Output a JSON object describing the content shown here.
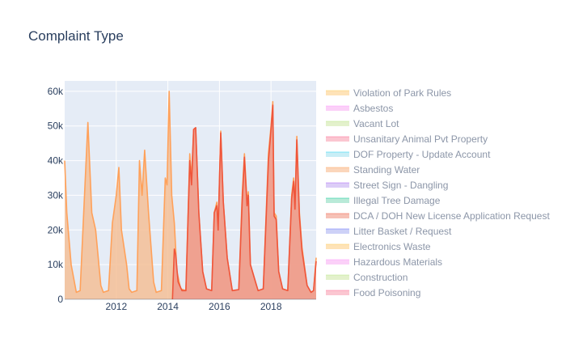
{
  "chart_data": {
    "type": "area",
    "title": "Complaint Type",
    "xlabel": "",
    "ylabel": "",
    "xlim": [
      2010.0,
      2019.75
    ],
    "ylim": [
      0,
      63000
    ],
    "x_ticks": [
      {
        "value": 2012,
        "label": "2012"
      },
      {
        "value": 2014,
        "label": "2014"
      },
      {
        "value": 2016,
        "label": "2016"
      },
      {
        "value": 2018,
        "label": "2018"
      }
    ],
    "y_ticks": [
      {
        "value": 0,
        "label": "0"
      },
      {
        "value": 10000,
        "label": "10k"
      },
      {
        "value": 20000,
        "label": "20k"
      },
      {
        "value": 30000,
        "label": "30k"
      },
      {
        "value": 40000,
        "label": "40k"
      },
      {
        "value": 50000,
        "label": "50k"
      },
      {
        "value": 60000,
        "label": "60k"
      }
    ],
    "grid": true,
    "legend_position": "right",
    "plot_background": "#e5ecf6",
    "series": [
      {
        "name": "Standing Water",
        "color": "#ffa15a",
        "fill": "#f5c096",
        "points": [
          [
            2010.0,
            40000
          ],
          [
            2010.08,
            25000
          ],
          [
            2010.25,
            10000
          ],
          [
            2010.45,
            2000
          ],
          [
            2010.6,
            2500
          ],
          [
            2010.8,
            35000
          ],
          [
            2010.9,
            51000
          ],
          [
            2011.05,
            25000
          ],
          [
            2011.2,
            20000
          ],
          [
            2011.4,
            4000
          ],
          [
            2011.5,
            2000
          ],
          [
            2011.7,
            2500
          ],
          [
            2011.85,
            22000
          ],
          [
            2012.0,
            30000
          ],
          [
            2012.1,
            38000
          ],
          [
            2012.2,
            20000
          ],
          [
            2012.4,
            10000
          ],
          [
            2012.5,
            3000
          ],
          [
            2012.6,
            2000
          ],
          [
            2012.8,
            2500
          ],
          [
            2012.9,
            40000
          ],
          [
            2013.0,
            30000
          ],
          [
            2013.1,
            43000
          ],
          [
            2013.25,
            25000
          ],
          [
            2013.45,
            5000
          ],
          [
            2013.55,
            2000
          ],
          [
            2013.75,
            2500
          ],
          [
            2013.9,
            35000
          ],
          [
            2013.97,
            33000
          ],
          [
            2014.05,
            60000
          ],
          [
            2014.15,
            30000
          ],
          [
            2014.25,
            22000
          ],
          [
            2014.35,
            8000
          ],
          [
            2014.5,
            3000
          ],
          [
            2014.7,
            2500
          ],
          [
            2014.85,
            42000
          ],
          [
            2014.92,
            35000
          ],
          [
            2015.0,
            49000
          ],
          [
            2015.08,
            49500
          ],
          [
            2015.2,
            25000
          ],
          [
            2015.35,
            8000
          ],
          [
            2015.5,
            3000
          ],
          [
            2015.7,
            2500
          ],
          [
            2015.8,
            25000
          ],
          [
            2015.9,
            28000
          ],
          [
            2015.95,
            20000
          ],
          [
            2016.05,
            48500
          ],
          [
            2016.15,
            28000
          ],
          [
            2016.3,
            12000
          ],
          [
            2016.5,
            2500
          ],
          [
            2016.75,
            2800
          ],
          [
            2016.88,
            30000
          ],
          [
            2016.97,
            42000
          ],
          [
            2017.07,
            28000
          ],
          [
            2017.12,
            31000
          ],
          [
            2017.2,
            10000
          ],
          [
            2017.4,
            5000
          ],
          [
            2017.5,
            2500
          ],
          [
            2017.7,
            3000
          ],
          [
            2017.9,
            42000
          ],
          [
            2018.0,
            50000
          ],
          [
            2018.07,
            57000
          ],
          [
            2018.12,
            25000
          ],
          [
            2018.2,
            24000
          ],
          [
            2018.3,
            8000
          ],
          [
            2018.45,
            3000
          ],
          [
            2018.65,
            2500
          ],
          [
            2018.8,
            30000
          ],
          [
            2018.88,
            35000
          ],
          [
            2018.93,
            27000
          ],
          [
            2019.0,
            47000
          ],
          [
            2019.1,
            25000
          ],
          [
            2019.2,
            15000
          ],
          [
            2019.4,
            4000
          ],
          [
            2019.55,
            2000
          ],
          [
            2019.65,
            2500
          ],
          [
            2019.75,
            12000
          ]
        ]
      },
      {
        "name": "DCA / DOH New License Application Request",
        "color": "#ef553b",
        "fill": "#ee9a8c",
        "points": [
          [
            2014.18,
            0
          ],
          [
            2014.25,
            14500
          ],
          [
            2014.3,
            13000
          ],
          [
            2014.4,
            5000
          ],
          [
            2014.55,
            2500
          ],
          [
            2014.7,
            2500
          ],
          [
            2014.85,
            40000
          ],
          [
            2014.92,
            33000
          ],
          [
            2015.0,
            49000
          ],
          [
            2015.08,
            49500
          ],
          [
            2015.2,
            25000
          ],
          [
            2015.35,
            8000
          ],
          [
            2015.5,
            3000
          ],
          [
            2015.7,
            2500
          ],
          [
            2015.8,
            25000
          ],
          [
            2015.9,
            27000
          ],
          [
            2015.95,
            20000
          ],
          [
            2016.05,
            48000
          ],
          [
            2016.15,
            28000
          ],
          [
            2016.3,
            12000
          ],
          [
            2016.5,
            2500
          ],
          [
            2016.75,
            2800
          ],
          [
            2016.88,
            28000
          ],
          [
            2016.97,
            41000
          ],
          [
            2017.07,
            27000
          ],
          [
            2017.12,
            30000
          ],
          [
            2017.2,
            10000
          ],
          [
            2017.4,
            5000
          ],
          [
            2017.5,
            2500
          ],
          [
            2017.7,
            3000
          ],
          [
            2017.9,
            40000
          ],
          [
            2018.0,
            49000
          ],
          [
            2018.07,
            56000
          ],
          [
            2018.12,
            24000
          ],
          [
            2018.2,
            23000
          ],
          [
            2018.3,
            8000
          ],
          [
            2018.45,
            3000
          ],
          [
            2018.65,
            2500
          ],
          [
            2018.8,
            29000
          ],
          [
            2018.88,
            34000
          ],
          [
            2018.93,
            26000
          ],
          [
            2019.0,
            46000
          ],
          [
            2019.1,
            24000
          ],
          [
            2019.2,
            14000
          ],
          [
            2019.4,
            4000
          ],
          [
            2019.55,
            2000
          ],
          [
            2019.65,
            2500
          ],
          [
            2019.75,
            11000
          ]
        ]
      }
    ],
    "legend": [
      {
        "name": "Violation of Park Rules",
        "fill": "#fee3b8",
        "line": "#fecb52"
      },
      {
        "name": "Asbestos",
        "fill": "#fbd0f8",
        "line": "#ff97ff"
      },
      {
        "name": "Vacant Lot",
        "fill": "#e3f1cc",
        "line": "#b6e880"
      },
      {
        "name": "Unsanitary Animal Pvt Property",
        "fill": "#fbc6d1",
        "line": "#ff6692"
      },
      {
        "name": "DOF Property - Update Account",
        "fill": "#c9eef6",
        "line": "#19d3f3"
      },
      {
        "name": "Standing Water",
        "fill": "#fbd6bb",
        "line": "#ffa15a"
      },
      {
        "name": "Street Sign - Dangling",
        "fill": "#dccdf7",
        "line": "#ab63fa"
      },
      {
        "name": "Illegal Tree Damage",
        "fill": "#b9ead8",
        "line": "#00cc96"
      },
      {
        "name": "DCA / DOH New License Application Request",
        "fill": "#f6c1b6",
        "line": "#ef553b"
      },
      {
        "name": "Litter Basket / Request",
        "fill": "#cdd1f7",
        "line": "#636efa"
      },
      {
        "name": "Electronics Waste",
        "fill": "#fee3b8",
        "line": "#fecb52"
      },
      {
        "name": "Hazardous Materials",
        "fill": "#fbd0f8",
        "line": "#ff97ff"
      },
      {
        "name": "Construction",
        "fill": "#e3f1cc",
        "line": "#b6e880"
      },
      {
        "name": "Food Poisoning",
        "fill": "#fbc6d1",
        "line": "#ff6692"
      }
    ]
  }
}
